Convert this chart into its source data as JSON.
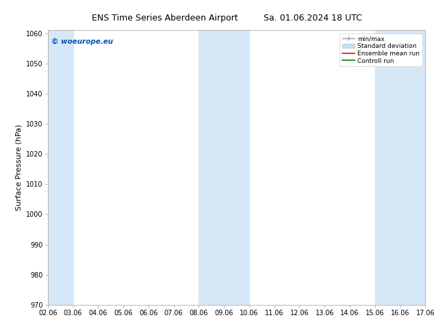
{
  "title1": "ENS Time Series Aberdeen Airport",
  "title2": "Sa. 01.06.2024 18 UTC",
  "ylabel": "Surface Pressure (hPa)",
  "ylim": [
    970,
    1061
  ],
  "yticks": [
    970,
    980,
    990,
    1000,
    1010,
    1020,
    1030,
    1040,
    1050,
    1060
  ],
  "xlim_start": 0,
  "xlim_end": 15,
  "xtick_labels": [
    "02.06",
    "03.06",
    "04.06",
    "05.06",
    "06.06",
    "07.06",
    "08.06",
    "09.06",
    "10.06",
    "11.06",
    "12.06",
    "13.06",
    "14.06",
    "15.06",
    "16.06",
    "17.06"
  ],
  "plot_bg_color": "#ffffff",
  "shaded_bands": [
    {
      "x_start": 0,
      "x_end": 1
    },
    {
      "x_start": 6,
      "x_end": 8
    },
    {
      "x_start": 13,
      "x_end": 15
    }
  ],
  "band_color": "#d6e8f7",
  "watermark_text": "© woeurope.eu",
  "watermark_color": "#0055cc",
  "title_fontsize": 9,
  "axis_label_fontsize": 8,
  "tick_fontsize": 7
}
